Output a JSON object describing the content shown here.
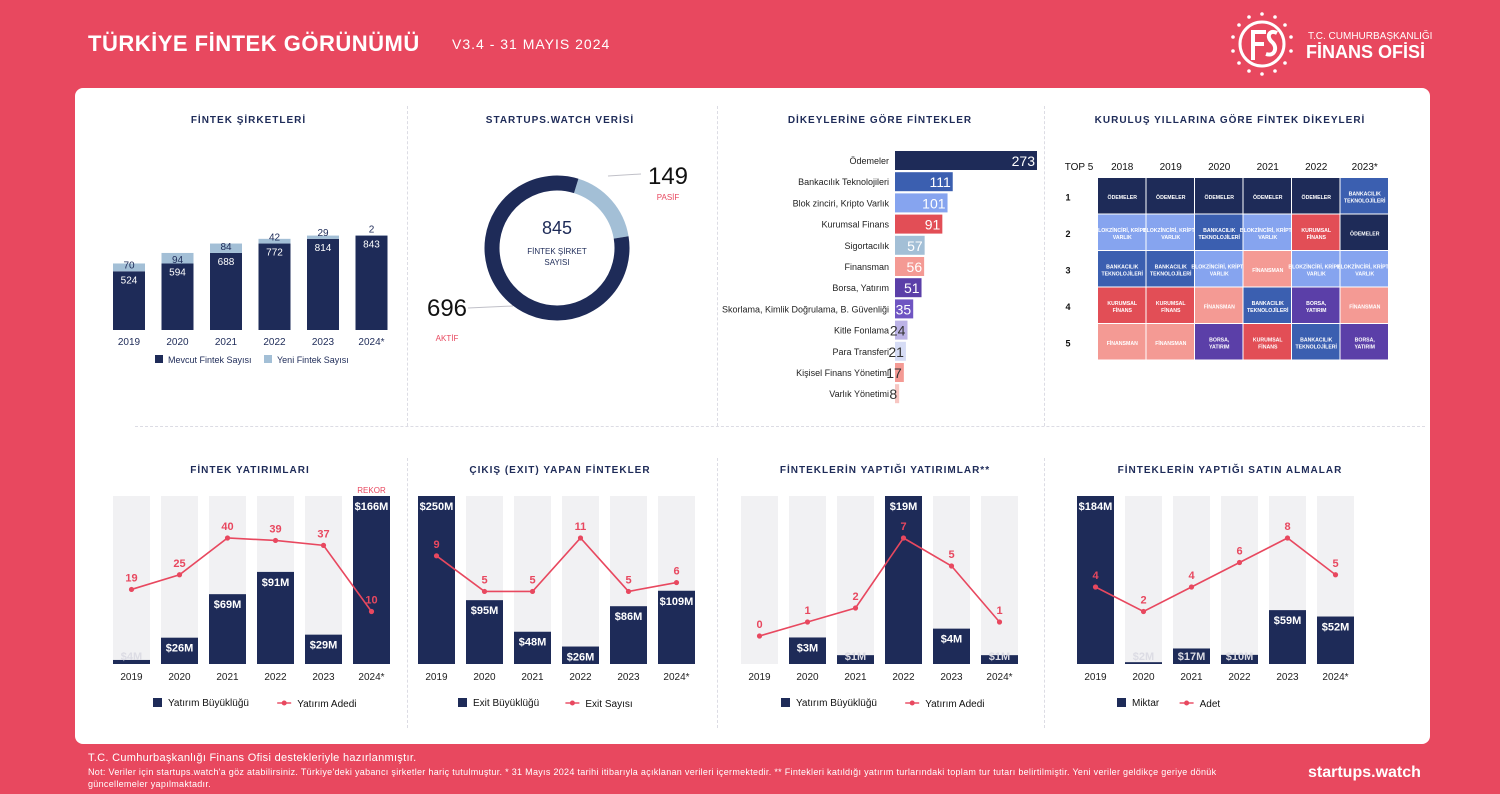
{
  "header": {
    "title": "TÜRKİYE FİNTEK GÖRÜNÜMÜ",
    "version": "V3.4 - 31 MAYIS 2024",
    "logo_line1": "T.C. CUMHURBAŞKANLIĞI",
    "logo_line2": "FİNANS OFİSİ"
  },
  "footer": {
    "line1": "T.C. Cumhurbaşkanlığı Finans Ofisi destekleriyle hazırlanmıştır.",
    "line2": "Not: Veriler için startups.watch'a göz atabilirsiniz. Türkiye'deki yabancı şirketler hariç tutulmuştur. * 31 Mayıs 2024 tarihi itibarıyla açıklanan verileri içermektedir. ** Fintekleri katıldığı yatırım turlarındaki toplam tur tutarı belirtilmiştir. Yeni veriler geldikçe geriye dönük güncellemeler yapılmaktadır.",
    "brand": "startups.watch"
  },
  "colors": {
    "navy": "#1e2b58",
    "light_blue": "#a3bfd6",
    "red": "#e8485f",
    "gray_bar": "#f1f1f3"
  },
  "heatmap": {
    "title": "KURULUŞ YILLARINA GÖRE FİNTEK DİKEYLERİ",
    "corner": "TOP 5",
    "years": [
      "2018",
      "2019",
      "2020",
      "2021",
      "2022",
      "2023*"
    ],
    "ranks": [
      "1",
      "2",
      "3",
      "4",
      "5"
    ],
    "cells": [
      [
        {
          "t": "ÖDEMELER",
          "c": "#1e2b58"
        },
        {
          "t": "ÖDEMELER",
          "c": "#1e2b58"
        },
        {
          "t": "ÖDEMELER",
          "c": "#1e2b58"
        },
        {
          "t": "ÖDEMELER",
          "c": "#1e2b58"
        },
        {
          "t": "ÖDEMELER",
          "c": "#1e2b58"
        },
        {
          "t": "BANKACILIK TEKNOLOJİLERİ",
          "c": "#3b5fb0"
        }
      ],
      [
        {
          "t": "BLOKZİNCİRİ, KRİPTO VARLIK",
          "c": "#86a4ef"
        },
        {
          "t": "BLOKZİNCİRİ, KRİPTO VARLIK",
          "c": "#86a4ef"
        },
        {
          "t": "BANKACILIK TEKNOLOJİLERİ",
          "c": "#3b5fb0"
        },
        {
          "t": "BLOKZİNCİRİ, KRİPTO VARLIK",
          "c": "#86a4ef"
        },
        {
          "t": "KURUMSAL FİNANS",
          "c": "#e24e56"
        },
        {
          "t": "ÖDEMELER",
          "c": "#1e2b58"
        }
      ],
      [
        {
          "t": "BANKACILIK TEKNOLOJİLERİ",
          "c": "#3b5fb0"
        },
        {
          "t": "BANKACILIK TEKNOLOJİLERİ",
          "c": "#3b5fb0"
        },
        {
          "t": "BLOKZİNCİRİ, KRİPTO VARLIK",
          "c": "#86a4ef"
        },
        {
          "t": "FİNANSMAN",
          "c": "#f49a94"
        },
        {
          "t": "BLOKZİNCİRİ, KRİPTO VARLIK",
          "c": "#86a4ef"
        },
        {
          "t": "BLOKZİNCİRİ, KRİPTO VARLIK",
          "c": "#86a4ef"
        }
      ],
      [
        {
          "t": "KURUMSAL FİNANS",
          "c": "#e24e56"
        },
        {
          "t": "KURUMSAL FİNANS",
          "c": "#e24e56"
        },
        {
          "t": "FİNANSMAN",
          "c": "#f49a94"
        },
        {
          "t": "BANKACILIK TEKNOLOJİLERİ",
          "c": "#3b5fb0"
        },
        {
          "t": "BORSA, YATIRIM",
          "c": "#5b3fa8"
        },
        {
          "t": "FİNANSMAN",
          "c": "#f49a94"
        }
      ],
      [
        {
          "t": "FİNANSMAN",
          "c": "#f49a94"
        },
        {
          "t": "FİNANSMAN",
          "c": "#f49a94"
        },
        {
          "t": "BORSA, YATIRIM",
          "c": "#5b3fa8"
        },
        {
          "t": "KURUMSAL FİNANS",
          "c": "#e24e56"
        },
        {
          "t": "BANKACILIK TEKNOLOJİLERİ",
          "c": "#3b5fb0"
        },
        {
          "t": "BORSA, YATIRIM",
          "c": "#5b3fa8"
        }
      ]
    ]
  },
  "chart_data": [
    {
      "id": "fintek_sirketleri",
      "type": "bar",
      "title": "FİNTEK ŞİRKETLERİ",
      "categories": [
        "2019",
        "2020",
        "2021",
        "2022",
        "2023",
        "2024*"
      ],
      "series": [
        {
          "name": "Mevcut Fintek Sayısı",
          "values": [
            524,
            594,
            688,
            772,
            814,
            843
          ],
          "color": "#1e2b58"
        },
        {
          "name": "Yeni Fintek Sayısı",
          "values": [
            70,
            94,
            84,
            42,
            29,
            2
          ],
          "color": "#a3bfd6"
        }
      ],
      "stacked": true
    },
    {
      "id": "startups_watch",
      "type": "pie",
      "title": "STARTUPS.WATCH VERİSİ",
      "center_value": "845",
      "center_label": "FİNTEK ŞİRKET SAYISI",
      "slices": [
        {
          "name": "AKTİF",
          "value": 696,
          "color": "#1e2b58"
        },
        {
          "name": "PASİF",
          "value": 149,
          "color": "#a3bfd6"
        }
      ]
    },
    {
      "id": "dikeyler",
      "type": "bar",
      "orientation": "horizontal",
      "title": "DİKEYLERİNE GÖRE FİNTEKLER",
      "categories": [
        "Ödemeler",
        "Bankacılık Teknolojileri",
        "Blok zinciri, Kripto Varlık",
        "Kurumsal Finans",
        "Sigortacılık",
        "Finansman",
        "Borsa, Yatırım",
        "Skorlama, Kimlik Doğrulama, B. Güvenliği",
        "Kitle Fonlama",
        "Para Transferi",
        "Kişisel Finans Yönetimi",
        "Varlık Yönetimi"
      ],
      "values": [
        273,
        111,
        101,
        91,
        57,
        56,
        51,
        35,
        24,
        21,
        17,
        8
      ],
      "colors": [
        "#1e2b58",
        "#3b5fb0",
        "#86a4ef",
        "#e24e56",
        "#a3bfd6",
        "#f49a94",
        "#5b3fa8",
        "#6f55c2",
        "#bcb3e6",
        "#d6dcf5",
        "#f49a94",
        "#f7c6c2"
      ]
    },
    {
      "id": "fintek_yatirimlari",
      "type": "bar",
      "title": "FİNTEK YATIRIMLARI",
      "categories": [
        "2019",
        "2020",
        "2021",
        "2022",
        "2023",
        "2024*"
      ],
      "bar_series": {
        "name": "Yatırım Büyüklüğü",
        "values": [
          4,
          26,
          69,
          91,
          29,
          166
        ],
        "labels": [
          "$4M",
          "$26M",
          "$69M",
          "$91M",
          "$29M",
          "$166M"
        ],
        "max": 166
      },
      "line_series": {
        "name": "Yatırım Adedi",
        "values": [
          19,
          25,
          40,
          39,
          37,
          10
        ],
        "max": 40
      },
      "annotation": "REKOR"
    },
    {
      "id": "exit",
      "type": "bar",
      "title": "ÇIKIŞ (EXIT) YAPAN FİNTEKLER",
      "categories": [
        "2019",
        "2020",
        "2021",
        "2022",
        "2023",
        "2024*"
      ],
      "bar_series": {
        "name": "Exit Büyüklüğü",
        "values": [
          250,
          95,
          48,
          26,
          86,
          109
        ],
        "labels": [
          "$250M",
          "$95M",
          "$48M",
          "$26M",
          "$86M",
          "$109M"
        ],
        "max": 250
      },
      "line_series": {
        "name": "Exit Sayısı",
        "values": [
          9,
          5,
          5,
          11,
          5,
          6
        ],
        "max": 11
      }
    },
    {
      "id": "fintek_yatirimlar",
      "type": "bar",
      "title": "FİNTEKLERİN YAPTIĞI YATIRIMLAR**",
      "categories": [
        "2019",
        "2020",
        "2021",
        "2022",
        "2023",
        "2024*"
      ],
      "bar_series": {
        "name": "Yatırım Büyüklüğü",
        "values": [
          0,
          3,
          1,
          19,
          4,
          1
        ],
        "labels": [
          "",
          "$3M",
          "$1M",
          "$19M",
          "$4M",
          "$1M"
        ],
        "max": 19
      },
      "line_series": {
        "name": "Yatırım Adedi",
        "values": [
          0,
          1,
          2,
          7,
          5,
          1
        ],
        "max": 7
      }
    },
    {
      "id": "satin_almalar",
      "type": "bar",
      "title": "FİNTEKLERİN YAPTIĞI SATIN ALMALAR",
      "categories": [
        "2019",
        "2020",
        "2021",
        "2022",
        "2023",
        "2024*"
      ],
      "bar_series": {
        "name": "Miktar",
        "values": [
          184,
          2,
          17,
          10,
          59,
          52
        ],
        "labels": [
          "$184M",
          "$2M",
          "$17M",
          "$10M",
          "$59M",
          "$52M"
        ],
        "max": 184
      },
      "line_series": {
        "name": "Adet",
        "values": [
          4,
          2,
          4,
          6,
          8,
          5
        ],
        "max": 8
      }
    }
  ]
}
